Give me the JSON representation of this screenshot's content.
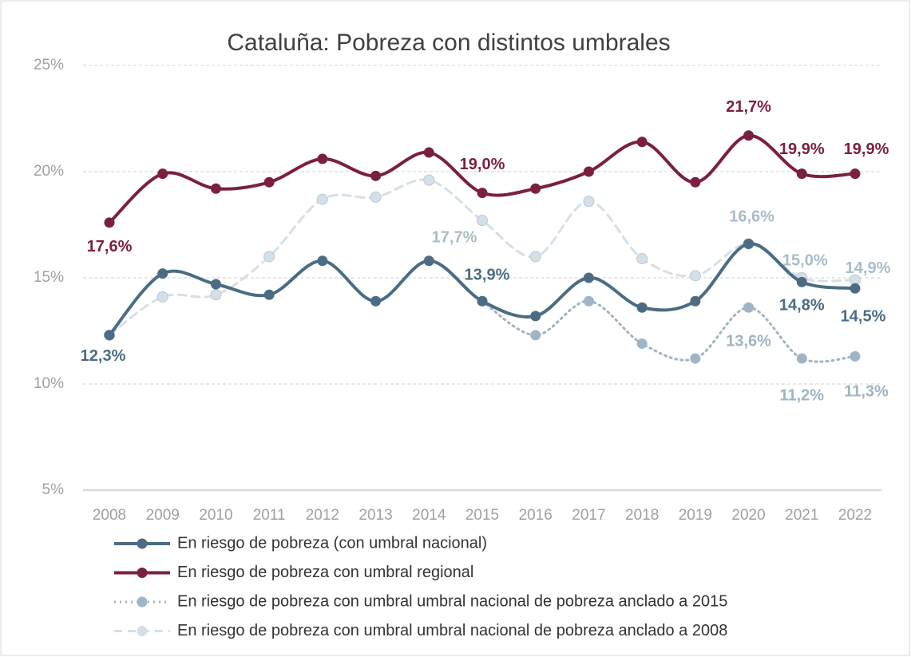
{
  "chart_data": {
    "type": "line",
    "title": "Cataluña: Pobreza con distintos umbrales",
    "categories": [
      "2008",
      "2009",
      "2010",
      "2011",
      "2012",
      "2013",
      "2014",
      "2015",
      "2016",
      "2017",
      "2018",
      "2019",
      "2020",
      "2021",
      "2022"
    ],
    "ylim": [
      5,
      25
    ],
    "yticks": [
      {
        "value": 5,
        "label": "5%"
      },
      {
        "value": 10,
        "label": "10%"
      },
      {
        "value": 15,
        "label": "15%"
      },
      {
        "value": 20,
        "label": "20%"
      },
      {
        "value": 25,
        "label": "25%"
      }
    ],
    "grid": true,
    "legend": "bottom",
    "series": [
      {
        "name": "En riesgo de pobreza (con umbral nacional)",
        "color": "#4b6c83",
        "style": "solid",
        "values": [
          12.3,
          15.2,
          14.7,
          14.2,
          15.8,
          13.9,
          15.8,
          13.9,
          13.2,
          15.0,
          13.6,
          13.9,
          16.6,
          14.8,
          14.5
        ],
        "value_labels": [
          "12,3%",
          null,
          null,
          null,
          null,
          null,
          null,
          "13,9%",
          null,
          null,
          null,
          null,
          null,
          "14,8%",
          "14,5%"
        ]
      },
      {
        "name": "En riesgo de pobreza con umbral regional",
        "color": "#7b1f42",
        "style": "solid",
        "values": [
          17.6,
          19.9,
          19.2,
          19.5,
          20.6,
          19.8,
          20.9,
          19.0,
          19.2,
          20.0,
          21.4,
          19.5,
          21.7,
          19.9,
          19.9
        ],
        "value_labels": [
          "17,6%",
          null,
          null,
          null,
          null,
          null,
          null,
          "19,0%",
          null,
          null,
          null,
          null,
          "21,7%",
          "19,9%",
          "19,9%"
        ]
      },
      {
        "name": "En riesgo de pobreza con umbral umbral nacional de pobreza anclado a 2015",
        "color": "#9fb4c4",
        "style": "dotted",
        "values": [
          null,
          null,
          null,
          null,
          null,
          null,
          null,
          13.9,
          12.3,
          13.9,
          11.9,
          11.2,
          13.6,
          11.2,
          11.3
        ],
        "value_labels": [
          null,
          null,
          null,
          null,
          null,
          null,
          null,
          null,
          null,
          null,
          null,
          null,
          "13,6%",
          "11,2%",
          "11,3%"
        ]
      },
      {
        "name": "En riesgo de pobreza con umbral umbral nacional de pobreza anclado a 2008",
        "color": "#d5dfe8",
        "style": "dashed",
        "values": [
          12.3,
          14.1,
          14.2,
          16.0,
          18.7,
          18.8,
          19.6,
          17.7,
          16.0,
          18.6,
          15.9,
          15.1,
          16.6,
          15.0,
          14.9
        ],
        "value_labels": [
          null,
          null,
          null,
          null,
          null,
          null,
          null,
          "17,7%",
          null,
          null,
          null,
          null,
          "16,6%",
          "15,0%",
          "14,9%"
        ]
      }
    ]
  }
}
